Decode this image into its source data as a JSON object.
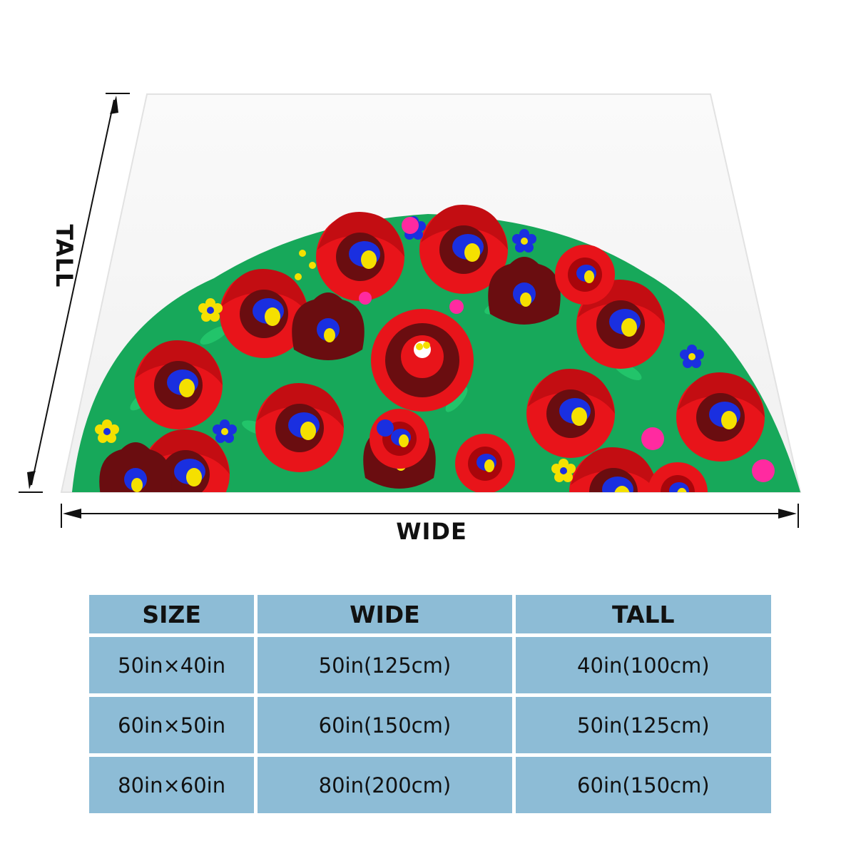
{
  "labels": {
    "wide": "WIDE",
    "tall": "TALL"
  },
  "table": {
    "headers": [
      "SIZE",
      "WIDE",
      "TALL"
    ],
    "rows": [
      [
        "50in×40in",
        "50in(125cm)",
        "40in(100cm)"
      ],
      [
        "60in×50in",
        "60in(150cm)",
        "50in(125cm)"
      ],
      [
        "80in×60in",
        "80in(200cm)",
        "60in(150cm)"
      ]
    ]
  },
  "colors": {
    "table_cell": "#8dbcd6",
    "flower_red": "#e8141a",
    "flower_dark": "#6a0d10",
    "flower_blue": "#1a2fe0",
    "flower_yellow": "#f5e000",
    "leaf_green": "#22c46a",
    "pink": "#ff2aa0"
  },
  "icons": [
    "blanket-image",
    "floral-pattern",
    "width-arrow",
    "height-arrow"
  ]
}
